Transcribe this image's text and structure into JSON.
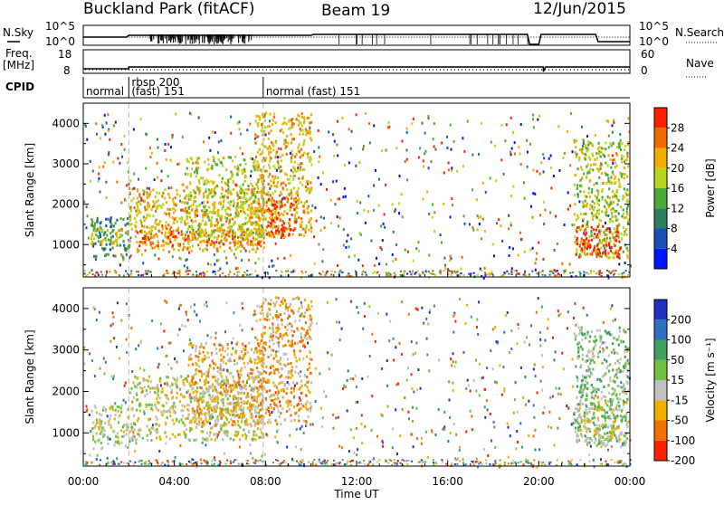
{
  "header": {
    "station": "Buckland Park (fitACF)",
    "beam": "Beam 19",
    "date": "12/Jun/2015"
  },
  "top_panel": {
    "nsky_label": "N.Sky",
    "nsearch_label": "N.Search",
    "left_ticks": [
      "10^5",
      "10^0"
    ],
    "right_ticks": [
      "10^5",
      "10^0"
    ],
    "freq_label": "Freq.",
    "freq_unit": "[MHz]",
    "freq_ticks": [
      "18",
      "8"
    ],
    "nave_label": "Nave",
    "nave_ticks": [
      "60",
      "0"
    ],
    "cpid_label": "CPID",
    "cpid_segments": [
      {
        "start_hour": 0,
        "end_hour": 2.0,
        "line1": "",
        "line2": "normal"
      },
      {
        "start_hour": 2.0,
        "end_hour": 7.9,
        "line1": "rbsp 200",
        "line2": "(fast) 151"
      },
      {
        "start_hour": 7.9,
        "end_hour": 24,
        "line1": "",
        "line2": "normal (fast) 151"
      }
    ]
  },
  "chart_data": [
    {
      "type": "heatmap",
      "name": "power",
      "ylabel": "Slant Range [km]",
      "ylim": [
        200,
        4500
      ],
      "yticks": [
        1000,
        2000,
        3000,
        4000
      ],
      "xlim": [
        0,
        24
      ],
      "colorbar": {
        "label": "Power [dB]",
        "ticks": [
          "4",
          "8",
          "12",
          "16",
          "20",
          "24",
          "28"
        ],
        "colors": [
          "#0014ff",
          "#1a4fb8",
          "#2f7d5f",
          "#4caa38",
          "#b8d620",
          "#f0b000",
          "#f06a00",
          "#ff2000"
        ]
      },
      "regions": [
        {
          "t0": 0.3,
          "t1": 2.0,
          "r0": 650,
          "r1": 1700,
          "level": 2
        },
        {
          "t0": 0.3,
          "t1": 2.0,
          "r0": 1000,
          "r1": 1400,
          "level": 4
        },
        {
          "t0": 2.0,
          "t1": 7.9,
          "r0": 850,
          "r1": 2400,
          "level": 5
        },
        {
          "t0": 2.3,
          "t1": 7.9,
          "r0": 1000,
          "r1": 1400,
          "level": 6
        },
        {
          "t0": 4.5,
          "t1": 7.9,
          "r0": 1200,
          "r1": 3200,
          "level": 4
        },
        {
          "t0": 7.5,
          "t1": 10.0,
          "r0": 1200,
          "r1": 4300,
          "level": 5
        },
        {
          "t0": 8.0,
          "t1": 9.3,
          "r0": 1200,
          "r1": 2200,
          "level": 7
        },
        {
          "t0": 21.5,
          "t1": 23.9,
          "r0": 700,
          "r1": 3600,
          "level": 4
        },
        {
          "t0": 21.6,
          "t1": 23.6,
          "r0": 700,
          "r1": 1500,
          "level": 7
        }
      ]
    },
    {
      "type": "heatmap",
      "name": "velocity",
      "ylabel": "Slant Range [km]",
      "ylim": [
        200,
        4500
      ],
      "yticks": [
        1000,
        2000,
        3000,
        4000
      ],
      "xlim": [
        0,
        24
      ],
      "xticks": [
        "00:00",
        "04:00",
        "08:00",
        "12:00",
        "16:00",
        "20:00",
        "00:00"
      ],
      "xlabel": "Time UT",
      "colorbar": {
        "label": "Velocity [m s⁻¹]",
        "ticks": [
          "200",
          "100",
          "50",
          "15",
          "-15",
          "-50",
          "-100",
          "-200"
        ],
        "colors": [
          "#2030c0",
          "#3070c0",
          "#40a060",
          "#70c040",
          "#c0c0c0",
          "#f0b000",
          "#f07000",
          "#ff2000"
        ]
      },
      "regions": [
        {
          "t0": 0.3,
          "t1": 2.0,
          "r0": 650,
          "r1": 1700,
          "level": 4
        },
        {
          "t0": 2.0,
          "t1": 7.9,
          "r0": 850,
          "r1": 2400,
          "level": 4
        },
        {
          "t0": 4.5,
          "t1": 7.9,
          "r0": 1200,
          "r1": 3200,
          "level": 5
        },
        {
          "t0": 7.5,
          "t1": 10.0,
          "r0": 1200,
          "r1": 4300,
          "level": 5
        },
        {
          "t0": 21.5,
          "t1": 23.9,
          "r0": 700,
          "r1": 3600,
          "level": 3
        },
        {
          "t0": 21.6,
          "t1": 23.9,
          "r0": 800,
          "r1": 1800,
          "level": 4
        }
      ]
    }
  ]
}
